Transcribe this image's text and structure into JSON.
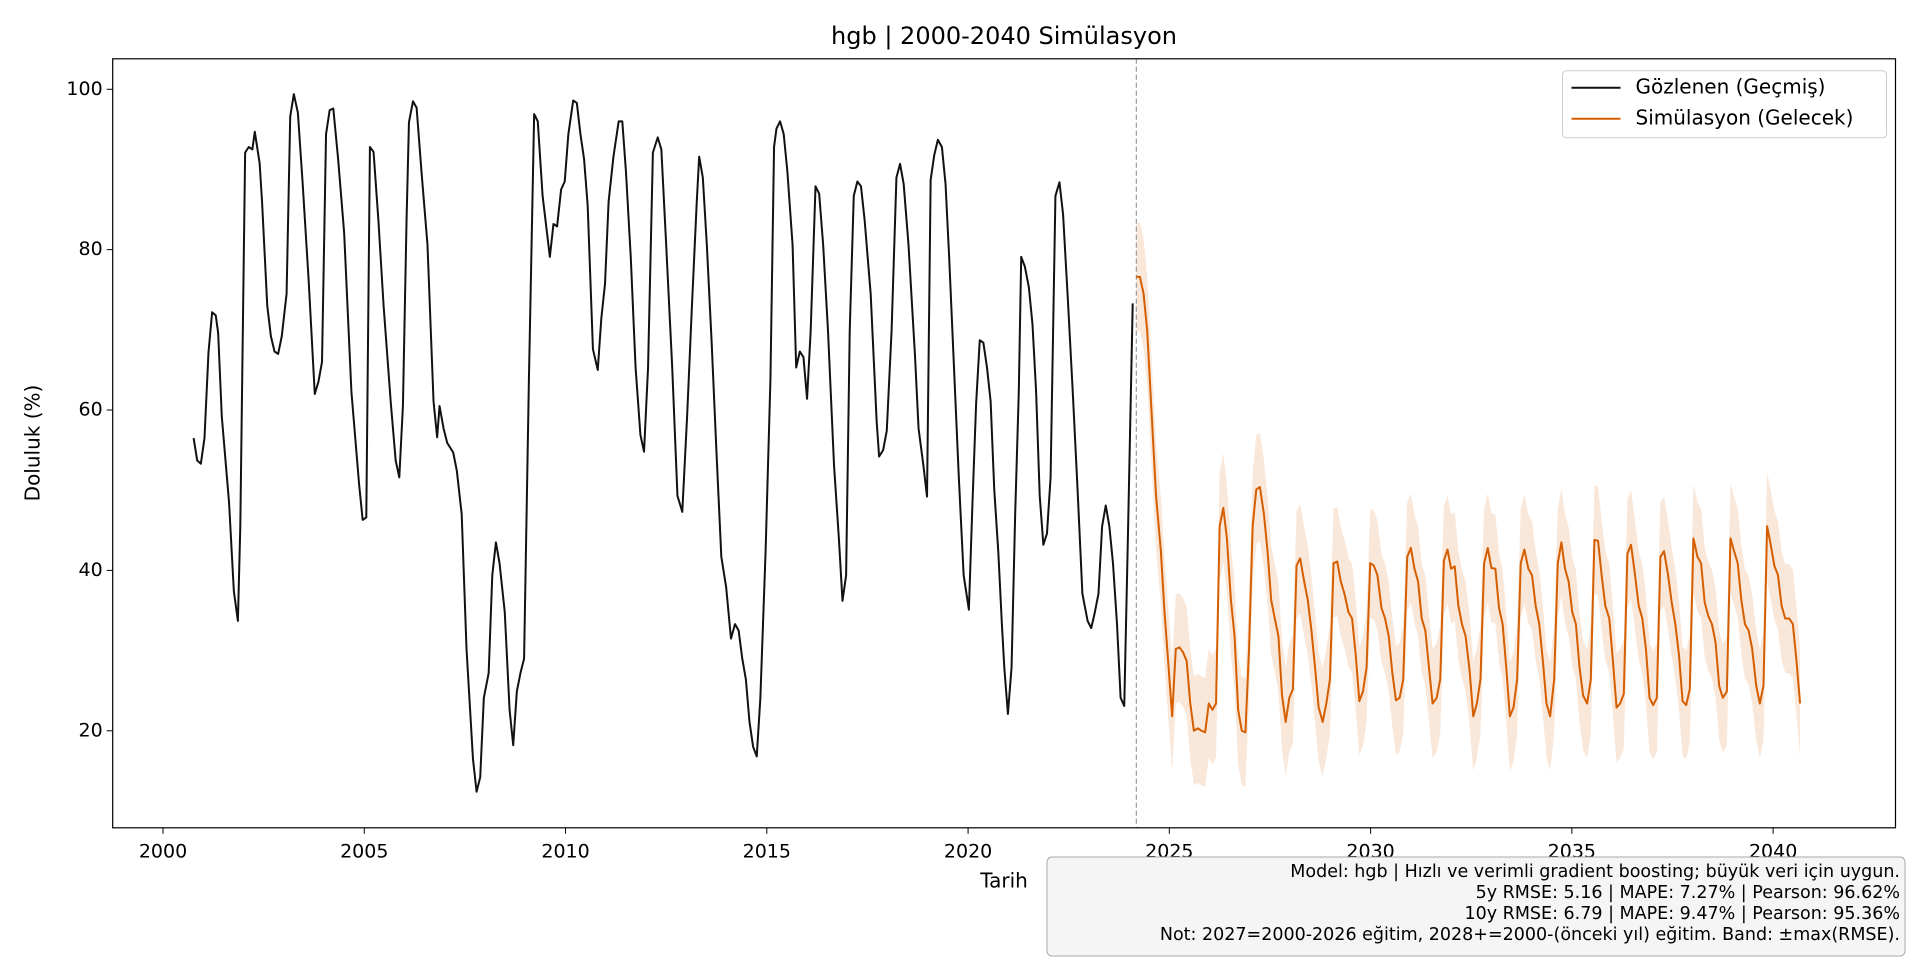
{
  "chart_data": {
    "type": "line",
    "title": "hgb | 2000-2040 Simülasyon",
    "xlabel": "Tarih",
    "ylabel": "Doluluk (%)",
    "xlim": [
      1998.75,
      2043.04
    ],
    "ylim": [
      7.9,
      103.8
    ],
    "xticks": [
      2000,
      2005,
      2010,
      2015,
      2020,
      2025,
      2030,
      2035,
      2040
    ],
    "yticks": [
      20,
      40,
      60,
      80,
      100
    ],
    "legend": "upper right",
    "forecast_start": 2024.18,
    "series": [
      {
        "name": "Gözlenen (Geçmiş)",
        "color": "#111111",
        "x": [
          2000.76,
          2000.85,
          2000.94,
          2001.03,
          2001.13,
          2001.22,
          2001.31,
          2001.37,
          2001.46,
          2001.64,
          2001.76,
          2001.86,
          2001.92,
          2002.04,
          2002.13,
          2002.22,
          2002.28,
          2002.4,
          2002.46,
          2002.59,
          2002.68,
          2002.77,
          2002.86,
          2002.95,
          2003.07,
          2003.16,
          2003.25,
          2003.35,
          2003.47,
          2003.62,
          2003.77,
          2003.86,
          2003.95,
          2004.05,
          2004.14,
          2004.23,
          2004.35,
          2004.5,
          2004.68,
          2004.87,
          2004.96,
          2005.05,
          2005.14,
          2005.23,
          2005.35,
          2005.48,
          2005.66,
          2005.78,
          2005.87,
          2005.96,
          2006.05,
          2006.11,
          2006.21,
          2006.3,
          2006.42,
          2006.57,
          2006.72,
          2006.81,
          2006.87,
          2006.97,
          2007.06,
          2007.21,
          2007.3,
          2007.42,
          2007.54,
          2007.7,
          2007.79,
          2007.88,
          2007.97,
          2008.09,
          2008.18,
          2008.27,
          2008.36,
          2008.49,
          2008.61,
          2008.7,
          2008.79,
          2008.88,
          2008.97,
          2009.09,
          2009.22,
          2009.31,
          2009.43,
          2009.61,
          2009.7,
          2009.79,
          2009.89,
          2009.98,
          2010.07,
          2010.19,
          2010.28,
          2010.37,
          2010.46,
          2010.55,
          2010.68,
          2010.8,
          2010.89,
          2010.98,
          2011.07,
          2011.19,
          2011.32,
          2011.41,
          2011.5,
          2011.62,
          2011.74,
          2011.86,
          2011.95,
          2012.05,
          2012.17,
          2012.29,
          2012.38,
          2012.5,
          2012.65,
          2012.78,
          2012.9,
          2013.02,
          2013.14,
          2013.26,
          2013.32,
          2013.41,
          2013.51,
          2013.63,
          2013.75,
          2013.87,
          2013.99,
          2014.11,
          2014.21,
          2014.3,
          2014.39,
          2014.48,
          2014.57,
          2014.66,
          2014.75,
          2014.84,
          2014.97,
          2015.09,
          2015.18,
          2015.24,
          2015.33,
          2015.42,
          2015.51,
          2015.64,
          2015.73,
          2015.82,
          2015.91,
          2016.0,
          2016.09,
          2016.21,
          2016.3,
          2016.4,
          2016.52,
          2016.67,
          2016.79,
          2016.88,
          2016.97,
          2017.06,
          2017.16,
          2017.25,
          2017.34,
          2017.43,
          2017.58,
          2017.73,
          2017.79,
          2017.89,
          2017.98,
          2018.1,
          2018.22,
          2018.31,
          2018.4,
          2018.52,
          2018.68,
          2018.77,
          2018.89,
          2018.98,
          2019.07,
          2019.16,
          2019.25,
          2019.35,
          2019.44,
          2019.53,
          2019.65,
          2019.77,
          2019.89,
          2020.02,
          2020.11,
          2020.2,
          2020.29,
          2020.38,
          2020.47,
          2020.56,
          2020.65,
          2020.75,
          2020.84,
          2020.9,
          2020.99,
          2021.08,
          2021.17,
          2021.26,
          2021.32,
          2021.41,
          2021.51,
          2021.6,
          2021.69,
          2021.78,
          2021.87,
          2021.96,
          2022.05,
          2022.17,
          2022.27,
          2022.36,
          2022.48,
          2022.6,
          2022.72,
          2022.84,
          2022.97,
          2023.06,
          2023.15,
          2023.24,
          2023.33,
          2023.42,
          2023.51,
          2023.6,
          2023.7,
          2023.79,
          2023.88,
          2023.97,
          2024.09
        ],
        "values": [
          56.5,
          53.7,
          53.3,
          56.5,
          67.2,
          72.2,
          71.8,
          69.6,
          59.2,
          48.5,
          37.4,
          33.7,
          45.5,
          92.1,
          92.8,
          92.5,
          94.7,
          90.8,
          86.0,
          73.0,
          69.2,
          67.3,
          67.0,
          69.2,
          74.5,
          96.6,
          99.4,
          97.1,
          88.2,
          76.0,
          62.0,
          63.5,
          66.0,
          94.4,
          97.4,
          97.6,
          91.3,
          82.1,
          62.3,
          50.8,
          46.3,
          46.6,
          92.8,
          92.2,
          83.7,
          73.0,
          60.8,
          53.7,
          51.6,
          60.5,
          83.7,
          95.9,
          98.5,
          97.7,
          89.8,
          80.6,
          61.1,
          56.6,
          60.5,
          57.7,
          55.9,
          54.7,
          52.4,
          47.0,
          30.2,
          16.5,
          12.4,
          14.2,
          24.1,
          27.2,
          39.4,
          43.5,
          40.9,
          34.8,
          22.6,
          18.2,
          24.9,
          27.2,
          29.0,
          63.8,
          96.9,
          96.0,
          86.7,
          79.1,
          83.2,
          82.9,
          87.5,
          88.5,
          94.4,
          98.6,
          98.3,
          94.4,
          91.3,
          85.5,
          67.6,
          65.0,
          71.5,
          75.7,
          86.0,
          91.6,
          96.0,
          96.0,
          89.8,
          79.1,
          65.3,
          56.9,
          54.8,
          65.3,
          92.1,
          94.0,
          92.5,
          80.6,
          65.3,
          49.3,
          47.3,
          59.2,
          73.0,
          86.0,
          91.6,
          89.0,
          80.6,
          68.4,
          54.7,
          41.7,
          37.9,
          31.5,
          33.3,
          32.5,
          29.0,
          26.4,
          21.1,
          18.0,
          16.8,
          24.1,
          42.4,
          63.8,
          92.8,
          95.1,
          96.0,
          94.4,
          89.8,
          80.6,
          65.3,
          67.3,
          66.6,
          61.4,
          69.9,
          87.9,
          87.0,
          80.6,
          69.9,
          53.1,
          44.0,
          36.2,
          39.4,
          69.9,
          86.7,
          88.5,
          87.9,
          83.7,
          74.5,
          58.5,
          54.2,
          55.0,
          57.4,
          69.9,
          89.0,
          90.7,
          88.2,
          80.6,
          66.9,
          57.7,
          53.1,
          49.2,
          88.7,
          91.8,
          93.7,
          92.8,
          88.2,
          79.1,
          65.3,
          51.6,
          39.4,
          35.1,
          48.5,
          60.8,
          68.7,
          68.4,
          65.3,
          61.1,
          50.1,
          42.4,
          33.3,
          27.9,
          22.1,
          27.9,
          47.0,
          62.3,
          79.1,
          77.9,
          75.3,
          70.7,
          62.3,
          49.3,
          43.2,
          44.6,
          51.6,
          86.7,
          88.4,
          84.4,
          73.7,
          62.3,
          50.1,
          37.1,
          33.7,
          32.8,
          34.8,
          37.1,
          45.5,
          48.1,
          45.5,
          40.9,
          33.3,
          24.1,
          23.1,
          44.0,
          73.3
        ]
      },
      {
        "name": "Simülasyon (Gelecek)",
        "color": "#d55e00",
        "band": 6.79,
        "x": [
          2024.18,
          2024.27,
          2024.36,
          2024.45,
          2024.58,
          2024.67,
          2024.79,
          2024.88,
          2024.97,
          2025.07,
          2025.16,
          2025.25,
          2025.34,
          2025.43,
          2025.52,
          2025.61,
          2025.71,
          2025.8,
          2025.89,
          2025.98,
          2026.07,
          2026.16,
          2026.25,
          2026.34,
          2026.43,
          2026.53,
          2026.62,
          2026.71,
          2026.8,
          2026.89,
          2026.98,
          2027.07,
          2027.16,
          2027.25,
          2027.35,
          2027.44,
          2027.53,
          2027.62,
          2027.71,
          2027.8,
          2027.89,
          2027.98,
          2028.07,
          2028.16,
          2028.25,
          2028.35,
          2028.44,
          2028.53,
          2028.62,
          2028.71,
          2028.81,
          2028.9,
          2028.99,
          2029.08,
          2029.17,
          2029.26,
          2029.35,
          2029.45,
          2029.54,
          2029.63,
          2029.72,
          2029.81,
          2029.9,
          2029.99,
          2030.08,
          2030.17,
          2030.27,
          2030.36,
          2030.45,
          2030.54,
          2030.63,
          2030.72,
          2030.81,
          2030.91,
          2031.0,
          2031.09,
          2031.18,
          2031.27,
          2031.36,
          2031.45,
          2031.54,
          2031.64,
          2031.73,
          2031.82,
          2031.91,
          2032.0,
          2032.09,
          2032.18,
          2032.27,
          2032.36,
          2032.46,
          2032.55,
          2032.64,
          2032.73,
          2032.82,
          2032.91,
          2033.0,
          2033.1,
          2033.19,
          2033.28,
          2033.37,
          2033.46,
          2033.55,
          2033.64,
          2033.73,
          2033.82,
          2033.92,
          2034.01,
          2034.1,
          2034.19,
          2034.28,
          2034.37,
          2034.46,
          2034.56,
          2034.65,
          2034.74,
          2034.83,
          2034.92,
          2035.01,
          2035.1,
          2035.19,
          2035.28,
          2035.38,
          2035.47,
          2035.56,
          2035.65,
          2035.74,
          2035.83,
          2035.93,
          2036.02,
          2036.11,
          2036.2,
          2036.29,
          2036.38,
          2036.47,
          2036.57,
          2036.66,
          2036.75,
          2036.84,
          2036.93,
          2037.02,
          2037.11,
          2037.2,
          2037.29,
          2037.39,
          2037.48,
          2037.57,
          2037.66,
          2037.75,
          2037.84,
          2037.93,
          2038.02,
          2038.12,
          2038.21,
          2038.3,
          2038.39,
          2038.48,
          2038.57,
          2038.66,
          2038.75,
          2038.85,
          2038.94,
          2039.03,
          2039.12,
          2039.21,
          2039.3,
          2039.39,
          2039.48,
          2039.58,
          2039.67,
          2039.76,
          2039.85,
          2039.94,
          2040.03,
          2040.12,
          2040.21,
          2040.3,
          2040.4,
          2040.49,
          2040.58,
          2040.67
        ],
        "values": [
          76.6,
          76.6,
          74.5,
          69.9,
          57.7,
          49.3,
          42.4,
          34.8,
          28.7,
          21.8,
          30.2,
          30.4,
          29.8,
          28.7,
          23.4,
          20.0,
          20.3,
          20.0,
          19.8,
          23.4,
          22.6,
          23.4,
          45.5,
          47.8,
          44.0,
          36.3,
          31.8,
          22.6,
          20.0,
          19.8,
          30.2,
          45.5,
          50.1,
          50.4,
          47.0,
          42.4,
          36.3,
          34.0,
          31.8,
          24.4,
          21.1,
          24.1,
          25.2,
          40.6,
          41.5,
          38.6,
          36.3,
          32.5,
          27.9,
          22.9,
          21.1,
          23.4,
          26.4,
          40.9,
          41.1,
          38.6,
          37.1,
          34.8,
          34.0,
          29.5,
          23.7,
          24.9,
          27.9,
          40.9,
          40.6,
          39.4,
          35.3,
          34.0,
          31.8,
          27.2,
          23.8,
          24.1,
          26.4,
          41.7,
          42.8,
          40.2,
          38.6,
          34.0,
          32.5,
          27.9,
          23.4,
          24.1,
          26.4,
          41.2,
          42.6,
          40.2,
          40.5,
          35.6,
          33.3,
          31.8,
          27.5,
          21.8,
          23.4,
          26.4,
          40.9,
          42.8,
          40.3,
          40.2,
          35.3,
          33.3,
          27.9,
          21.8,
          22.9,
          26.4,
          40.9,
          42.6,
          40.2,
          39.4,
          35.6,
          33.3,
          28.7,
          23.4,
          21.8,
          26.4,
          40.9,
          43.5,
          40.2,
          38.6,
          34.8,
          33.3,
          27.9,
          24.4,
          23.4,
          26.4,
          43.8,
          43.7,
          39.4,
          35.6,
          34.0,
          28.7,
          22.9,
          23.4,
          24.6,
          42.1,
          43.2,
          39.4,
          35.6,
          34.0,
          30.2,
          24.1,
          23.2,
          24.1,
          41.7,
          42.4,
          39.4,
          36.0,
          33.3,
          29.5,
          23.7,
          23.2,
          25.2,
          44.0,
          41.7,
          40.9,
          36.0,
          34.3,
          33.3,
          31.0,
          25.6,
          24.1,
          24.9,
          44.0,
          42.4,
          40.9,
          36.3,
          33.3,
          32.5,
          30.2,
          25.6,
          23.4,
          25.6,
          45.5,
          43.2,
          40.6,
          39.4,
          35.6,
          34.0,
          34.0,
          33.3,
          28.7,
          23.4
        ]
      }
    ],
    "annotation": [
      "Model: hgb | Hızlı ve verimli gradient boosting; büyük veri için uygun.",
      "5y RMSE: 5.16 | MAPE: 7.27% | Pearson: 96.62%",
      "10y RMSE: 6.79 | MAPE: 9.47% | Pearson: 95.36%",
      "Not: 2027=2000-2026 eğitim, 2028+=2000-(önceki yıl) eğitim. Band: ±max(RMSE)."
    ]
  }
}
